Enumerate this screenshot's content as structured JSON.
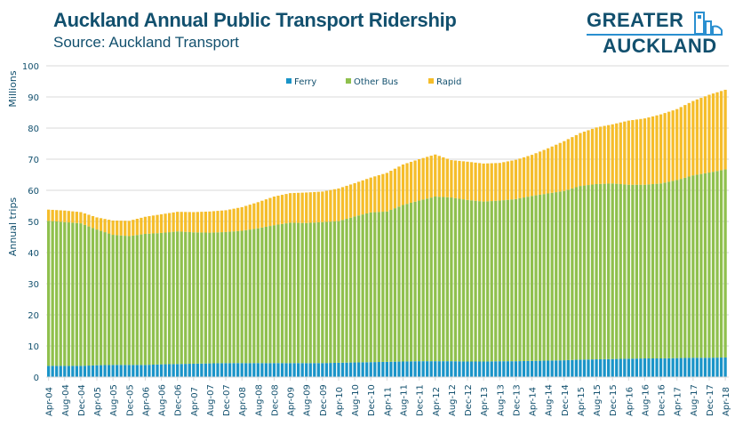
{
  "header": {
    "title": "Auckland Annual Public Transport Ridership",
    "subtitle": "Source: Auckland Transport",
    "logo_line1": "GREATER",
    "logo_line2": "AUCKLAND"
  },
  "colors": {
    "ferry": "#1a94c8",
    "other_bus": "#8fc04d",
    "rapid": "#f5bd2a",
    "text": "#12506e",
    "grid": "#d9d9d9"
  },
  "chart_data": {
    "type": "bar",
    "stacked": true,
    "title": "Auckland Annual Public Transport Ridership",
    "subtitle": "Source: Auckland Transport",
    "ylabel": "Annual trips",
    "yunit_label": "Millions",
    "xlabel": "",
    "ylim": [
      0,
      100
    ],
    "yticks": [
      0,
      10,
      20,
      30,
      40,
      50,
      60,
      70,
      80,
      90,
      100
    ],
    "grid": true,
    "legend_position": "top-center",
    "x_start": "Apr-04",
    "x_end": "Apr-18",
    "frequency": "monthly",
    "x_tick_labels": [
      "Apr-04",
      "Aug-04",
      "Dec-04",
      "Apr-05",
      "Aug-05",
      "Dec-05",
      "Apr-06",
      "Aug-06",
      "Dec-06",
      "Apr-07",
      "Aug-07",
      "Dec-07",
      "Apr-08",
      "Aug-08",
      "Dec-08",
      "Apr-09",
      "Aug-09",
      "Dec-09",
      "Apr-10",
      "Aug-10",
      "Dec-10",
      "Apr-11",
      "Aug-11",
      "Dec-11",
      "Apr-12",
      "Aug-12",
      "Dec-12",
      "Apr-13",
      "Aug-13",
      "Dec-13",
      "Apr-14",
      "Aug-14",
      "Dec-14",
      "Apr-15",
      "Aug-15",
      "Dec-15",
      "Apr-16",
      "Aug-16",
      "Dec-16",
      "Apr-17",
      "Aug-17",
      "Dec-17",
      "Apr-18"
    ],
    "series_keypoints_note": "Values at each 4-month tick (Apr-04 .. Apr-18), millions of annual trips; monthly bars interpolated between",
    "series": [
      {
        "name": "Ferry",
        "color_key": "ferry",
        "values": [
          3.6,
          3.6,
          3.6,
          3.8,
          3.9,
          3.9,
          3.9,
          4.1,
          4.2,
          4.3,
          4.4,
          4.5,
          4.5,
          4.5,
          4.5,
          4.5,
          4.5,
          4.5,
          4.6,
          4.7,
          4.8,
          4.9,
          5.0,
          5.1,
          5.1,
          5.1,
          5.0,
          5.0,
          5.1,
          5.1,
          5.2,
          5.3,
          5.4,
          5.6,
          5.7,
          5.8,
          5.9,
          6.0,
          6.0,
          6.1,
          6.2,
          6.2,
          6.3
        ]
      },
      {
        "name": "Other Bus",
        "color_key": "other_bus",
        "values": [
          46.6,
          46.2,
          45.8,
          43.6,
          41.8,
          41.4,
          42.1,
          42.2,
          42.6,
          42.2,
          42.0,
          42.1,
          42.5,
          43.3,
          44.3,
          45.1,
          45.0,
          45.3,
          45.5,
          46.9,
          48.1,
          48.3,
          50.3,
          51.6,
          52.9,
          52.6,
          51.9,
          51.4,
          51.6,
          52.1,
          53.0,
          53.7,
          54.4,
          55.8,
          56.3,
          56.4,
          55.9,
          55.8,
          56.2,
          57.2,
          58.6,
          59.5,
          60.4
        ]
      },
      {
        "name": "Rapid",
        "color_key": "rapid",
        "values": [
          3.6,
          3.7,
          3.6,
          3.9,
          4.6,
          4.9,
          5.5,
          6.0,
          6.3,
          6.5,
          6.8,
          7.0,
          7.6,
          8.4,
          9.2,
          9.5,
          9.8,
          9.8,
          10.5,
          10.7,
          11.2,
          12.4,
          13.0,
          13.3,
          13.5,
          12.0,
          12.3,
          12.2,
          12.1,
          12.6,
          13.2,
          14.5,
          16.0,
          17.0,
          18.2,
          19.0,
          20.6,
          21.3,
          22.2,
          22.8,
          23.9,
          25.0,
          25.6
        ]
      }
    ]
  }
}
